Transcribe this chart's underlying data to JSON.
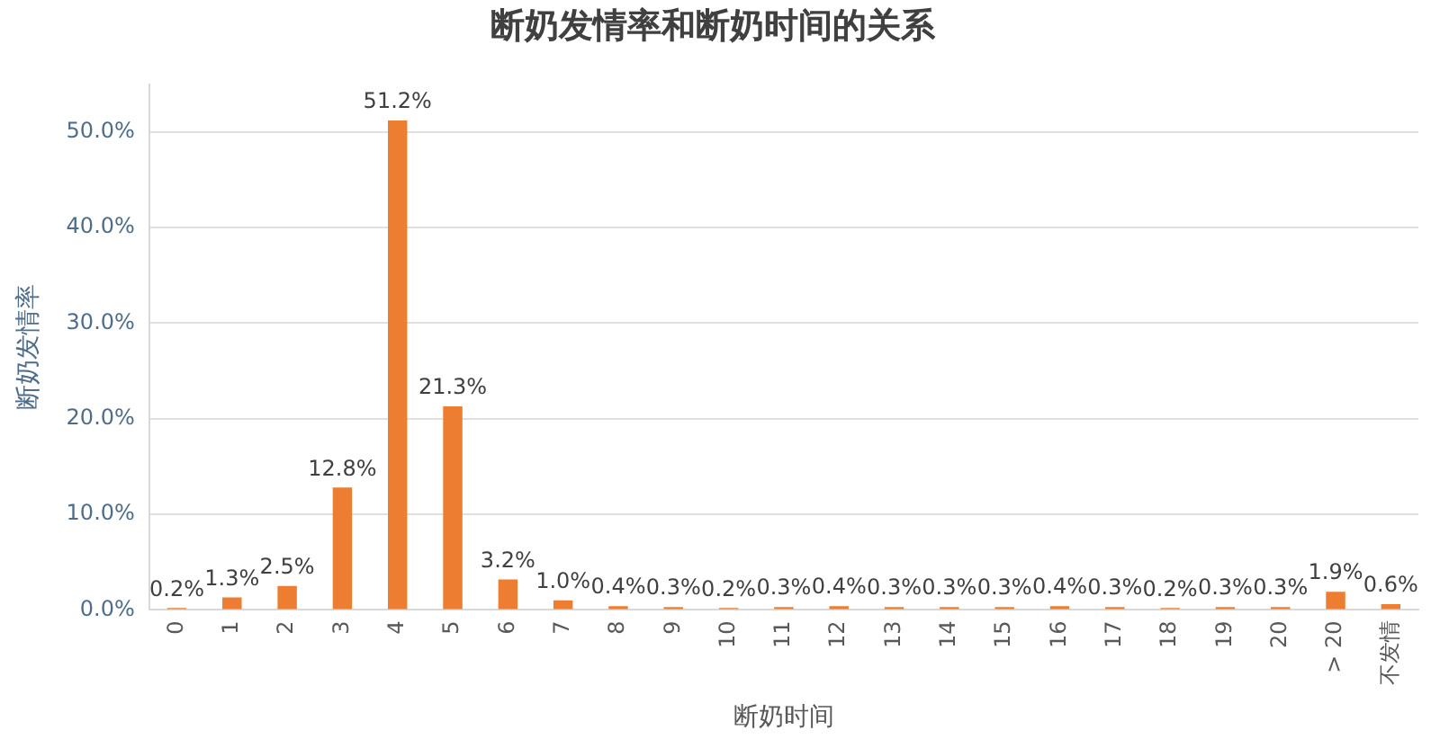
{
  "chart_data": {
    "type": "bar",
    "title": "断奶发情率和断奶时间的关系",
    "xlabel": "断奶时间",
    "ylabel": "断奶发情率",
    "categories": [
      "0",
      "1",
      "2",
      "3",
      "4",
      "5",
      "6",
      "7",
      "8",
      "9",
      "10",
      "11",
      "12",
      "13",
      "14",
      "15",
      "16",
      "17",
      "18",
      "19",
      "20",
      "> 20",
      "不发情"
    ],
    "values": [
      0.2,
      1.3,
      2.5,
      12.8,
      51.2,
      21.3,
      3.2,
      1.0,
      0.4,
      0.3,
      0.2,
      0.3,
      0.4,
      0.3,
      0.3,
      0.3,
      0.4,
      0.3,
      0.2,
      0.3,
      0.3,
      1.9,
      0.6
    ],
    "value_labels": [
      "0.2%",
      "1.3%",
      "2.5%",
      "12.8%",
      "51.2%",
      "21.3%",
      "3.2%",
      "1.0%",
      "0.4%",
      "0.3%",
      "0.2%",
      "0.3%",
      "0.4%",
      "0.3%",
      "0.3%",
      "0.3%",
      "0.4%",
      "0.3%",
      "0.2%",
      "0.3%",
      "0.3%",
      "1.9%",
      "0.6%"
    ],
    "color": "#ed7d31",
    "ylim": [
      0,
      55
    ],
    "yticks": [
      {
        "value": 0,
        "label": "0.0%"
      },
      {
        "value": 10,
        "label": "10.0%"
      },
      {
        "value": 20,
        "label": "20.0%"
      },
      {
        "value": 30,
        "label": "30.0%"
      },
      {
        "value": 40,
        "label": "40.0%"
      },
      {
        "value": 50,
        "label": "50.0%"
      }
    ],
    "grid": "y",
    "legend": false
  }
}
